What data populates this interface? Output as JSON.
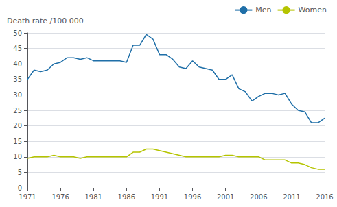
{
  "chart_data": {
    "type": "line",
    "ylabel": "Death rate /100 000",
    "x": [
      1971,
      1972,
      1973,
      1974,
      1975,
      1976,
      1977,
      1978,
      1979,
      1980,
      1981,
      1982,
      1983,
      1984,
      1985,
      1986,
      1987,
      1988,
      1989,
      1990,
      1991,
      1992,
      1993,
      1994,
      1995,
      1996,
      1997,
      1998,
      1999,
      2000,
      2001,
      2002,
      2003,
      2004,
      2005,
      2006,
      2007,
      2008,
      2009,
      2010,
      2011,
      2012,
      2013,
      2014,
      2015,
      2016
    ],
    "series": [
      {
        "name": "Men",
        "color": "#1f6fa8",
        "values": [
          35,
          38,
          37.5,
          38,
          40,
          40.5,
          42,
          42,
          41.5,
          42,
          41,
          41,
          41,
          41,
          41,
          40.5,
          46,
          46,
          49.5,
          48,
          43,
          43,
          41.5,
          39,
          38.5,
          41,
          39,
          38.5,
          38,
          35,
          35,
          36.5,
          32,
          31,
          28,
          29.5,
          30.5,
          30.5,
          30,
          30.5,
          27,
          25,
          24.5,
          21,
          21,
          22.5
        ]
      },
      {
        "name": "Women",
        "color": "#b5c400",
        "values": [
          9.5,
          10,
          10,
          10,
          10.5,
          10,
          10,
          10,
          9.5,
          10,
          10,
          10,
          10,
          10,
          10,
          10,
          11.5,
          11.5,
          12.5,
          12.5,
          12,
          11.5,
          11,
          10.5,
          10,
          10,
          10,
          10,
          10,
          10,
          10.5,
          10.5,
          10,
          10,
          10,
          10,
          9,
          9,
          9,
          9,
          8,
          8,
          7.5,
          6.5,
          6,
          6
        ]
      }
    ],
    "xlim": [
      1971,
      2016
    ],
    "xticks": [
      1971,
      1976,
      1981,
      1986,
      1991,
      1996,
      2001,
      2006,
      2011,
      2016
    ],
    "ylim": [
      0,
      50
    ],
    "yticks": [
      0,
      5,
      10,
      15,
      20,
      25,
      30,
      35,
      40,
      45,
      50
    ],
    "grid": true,
    "legend": "upper right"
  }
}
